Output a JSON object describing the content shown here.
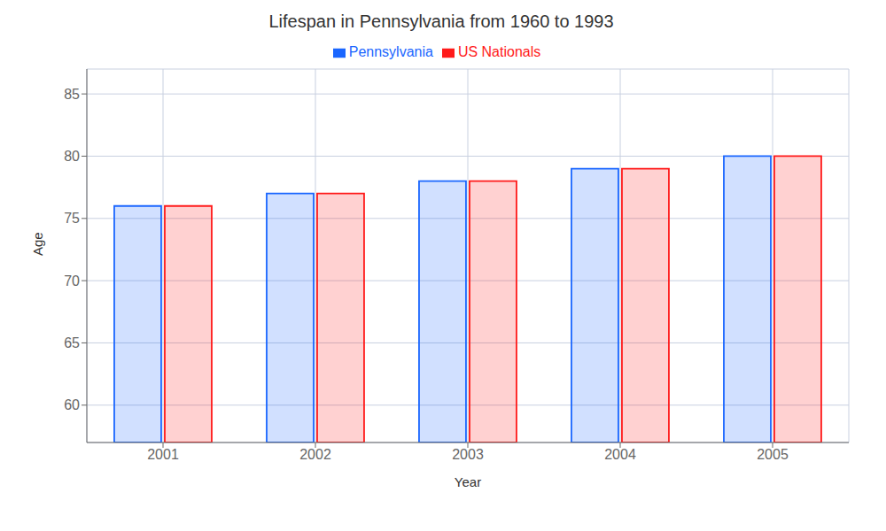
{
  "chart_data": {
    "type": "bar",
    "title": "Lifespan in Pennsylvania from 1960 to 1993",
    "xlabel": "Year",
    "ylabel": "Age",
    "categories": [
      "2001",
      "2002",
      "2003",
      "2004",
      "2005"
    ],
    "series": [
      {
        "name": "Pennsylvania",
        "color": "#1a66ff",
        "values": [
          76,
          77,
          78,
          79,
          80
        ]
      },
      {
        "name": "US Nationals",
        "color": "#ff1a1a",
        "values": [
          76,
          77,
          78,
          79,
          80
        ]
      }
    ],
    "ylim": [
      57,
      87
    ],
    "yticks": [
      60,
      65,
      70,
      75,
      80,
      85
    ],
    "grid": true,
    "legend": "top"
  }
}
